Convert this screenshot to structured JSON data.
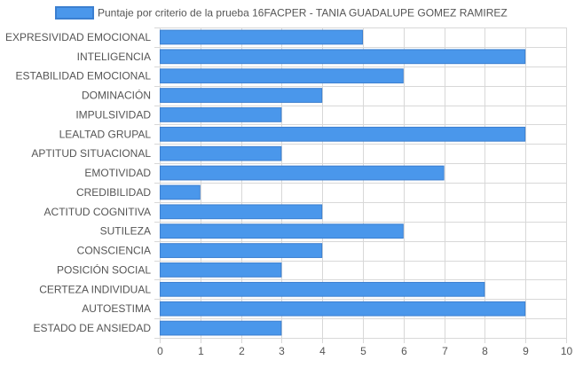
{
  "chart_data": {
    "type": "bar",
    "orientation": "horizontal",
    "legend": {
      "position": "top",
      "label": "Puntaje por criterio de la prueba 16FACPER - TANIA GUADALUPE GOMEZ RAMIREZ"
    },
    "categories": [
      "EXPRESIVIDAD EMOCIONAL",
      "INTELIGENCIA",
      "ESTABILIDAD EMOCIONAL",
      "DOMINACIÓN",
      "IMPULSIVIDAD",
      "LEALTAD GRUPAL",
      "APTITUD SITUACIONAL",
      "EMOTIVIDAD",
      "CREDIBILIDAD",
      "ACTITUD COGNITIVA",
      "SUTILEZA",
      "CONSCIENCIA",
      "POSICIÓN SOCIAL",
      "CERTEZA INDIVIDUAL",
      "AUTOESTIMA",
      "ESTADO DE ANSIEDAD"
    ],
    "series": [
      {
        "name": "Puntaje por criterio de la prueba 16FACPER - TANIA GUADALUPE GOMEZ RAMIREZ",
        "values": [
          5,
          9,
          6,
          4,
          3,
          9,
          3,
          7,
          1,
          4,
          6,
          4,
          3,
          8,
          9,
          3
        ]
      }
    ],
    "xlim": [
      0,
      10
    ],
    "xticks": [
      "0",
      "1",
      "2",
      "3",
      "4",
      "5",
      "6",
      "7",
      "8",
      "9",
      "10"
    ],
    "grid": true,
    "colors": {
      "bar_fill": "#4a97eb",
      "bar_border": "#3b7fd0",
      "grid": "#d8d8d8",
      "text": "#555555"
    }
  }
}
